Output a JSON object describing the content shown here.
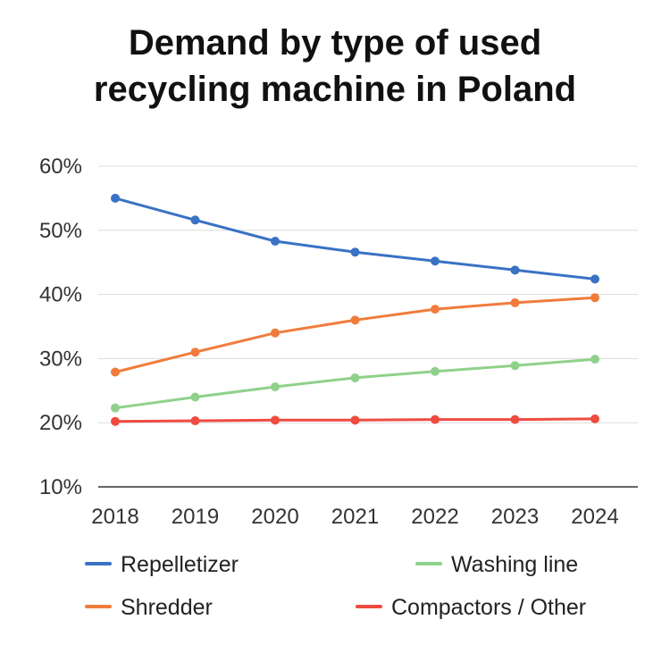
{
  "title_lines": [
    "Demand by type of used",
    "recycling machine in Poland"
  ],
  "chart_data": {
    "type": "line",
    "title": "Demand by type of used recycling machine in Poland",
    "xlabel": "",
    "ylabel": "",
    "x": [
      "2018",
      "2019",
      "2020",
      "2021",
      "2022",
      "2023",
      "2024"
    ],
    "ylim": [
      10,
      60
    ],
    "yticks": [
      10,
      20,
      30,
      40,
      50,
      60
    ],
    "ytick_labels": [
      "10%",
      "20%",
      "30%",
      "40%",
      "50%",
      "60%"
    ],
    "grid": true,
    "legend_position": "bottom",
    "series": [
      {
        "name": "Repelletizer",
        "color": "#3a72c4",
        "values": [
          55,
          51.6,
          48.3,
          46.6,
          45.2,
          43.8,
          42.4
        ]
      },
      {
        "name": "Shredder",
        "color": "#f07c3c",
        "values": [
          27.9,
          31,
          34,
          36,
          37.7,
          38.7,
          39.5
        ]
      },
      {
        "name": "Washing line",
        "color": "#8fd18b",
        "values": [
          22.3,
          24,
          25.6,
          27,
          28,
          28.9,
          29.9
        ]
      },
      {
        "name": "Compactors / Other",
        "color": "#ef4b40",
        "values": [
          20.2,
          20.3,
          20.4,
          20.4,
          20.5,
          20.5,
          20.6
        ]
      }
    ]
  }
}
